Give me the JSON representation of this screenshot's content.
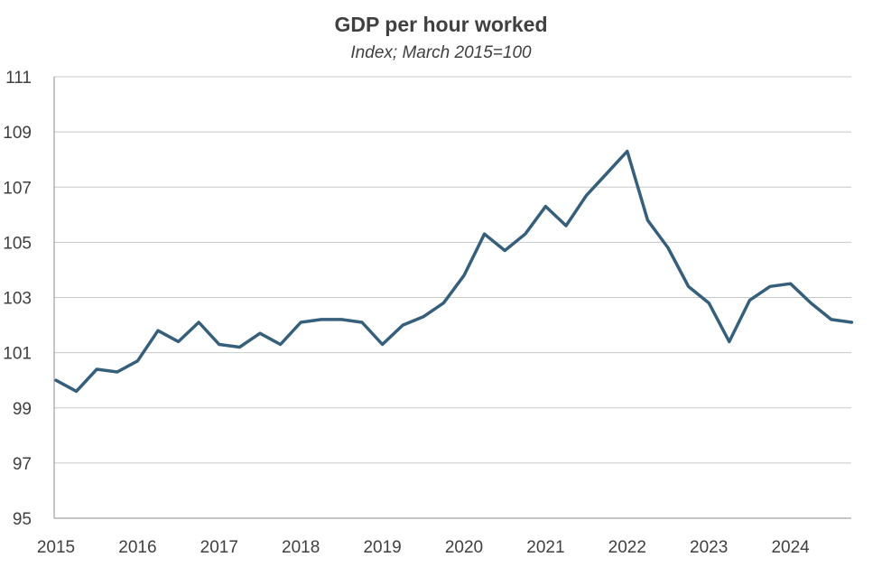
{
  "chart_data": {
    "type": "line",
    "title": "GDP per hour worked",
    "subtitle": "Index; March 2015=100",
    "xlabel": "",
    "ylabel": "",
    "ylim": [
      95,
      111
    ],
    "y_ticks": [
      95,
      97,
      99,
      101,
      103,
      105,
      107,
      109,
      111
    ],
    "x_ticks": [
      "2015",
      "2016",
      "2017",
      "2018",
      "2019",
      "2020",
      "2021",
      "2022",
      "2023",
      "2024"
    ],
    "grid": "horizontal",
    "legend": "none",
    "line_color": "#355f7a",
    "x": [
      "Mar-2015",
      "Jun-2015",
      "Sep-2015",
      "Dec-2015",
      "Mar-2016",
      "Jun-2016",
      "Sep-2016",
      "Dec-2016",
      "Mar-2017",
      "Jun-2017",
      "Sep-2017",
      "Dec-2017",
      "Mar-2018",
      "Jun-2018",
      "Sep-2018",
      "Dec-2018",
      "Mar-2019",
      "Jun-2019",
      "Sep-2019",
      "Dec-2019",
      "Mar-2020",
      "Jun-2020",
      "Sep-2020",
      "Dec-2020",
      "Mar-2021",
      "Jun-2021",
      "Sep-2021",
      "Dec-2021",
      "Mar-2022",
      "Jun-2022",
      "Sep-2022",
      "Dec-2022",
      "Mar-2023",
      "Jun-2023",
      "Sep-2023",
      "Dec-2023",
      "Mar-2024",
      "Jun-2024",
      "Sep-2024",
      "Dec-2024"
    ],
    "series": [
      {
        "values": [
          100.0,
          99.6,
          100.4,
          100.3,
          100.7,
          101.8,
          101.4,
          102.1,
          101.3,
          101.2,
          101.7,
          101.3,
          102.1,
          102.2,
          102.2,
          102.1,
          101.3,
          102.0,
          102.3,
          102.8,
          103.8,
          105.3,
          104.7,
          105.3,
          106.3,
          105.6,
          106.7,
          107.5,
          108.3,
          105.8,
          104.8,
          103.4,
          102.8,
          101.4,
          102.9,
          103.4,
          103.5,
          102.8,
          102.2,
          102.1
        ]
      }
    ]
  }
}
